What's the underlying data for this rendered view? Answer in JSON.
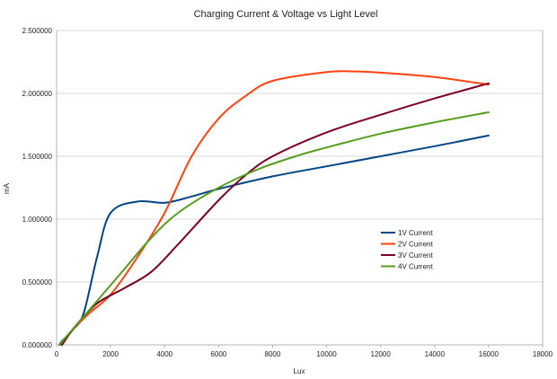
{
  "chart_data": {
    "type": "line",
    "title": "Charging Current & Voltage vs Light Level",
    "xlabel": "Lux",
    "ylabel": "mA",
    "xlim": [
      0,
      18000
    ],
    "ylim": [
      0,
      2.5
    ],
    "x_ticks": [
      "0",
      "2000",
      "4000",
      "6000",
      "8000",
      "10000",
      "12000",
      "14000",
      "16000",
      "18000"
    ],
    "y_ticks": [
      "0.000000",
      "0.500000",
      "1.000000",
      "1.500000",
      "2.000000",
      "2.500000"
    ],
    "grid": true,
    "legend_position": "center-right",
    "series": [
      {
        "name": "1V Current",
        "color": "#004586",
        "points": [
          [
            100,
            0.0
          ],
          [
            200,
            0.03
          ],
          [
            600,
            0.12
          ],
          [
            1000,
            0.25
          ],
          [
            1500,
            0.7
          ],
          [
            2000,
            1.05
          ],
          [
            3000,
            1.14
          ],
          [
            4000,
            1.13
          ],
          [
            5000,
            1.18
          ],
          [
            6000,
            1.24
          ],
          [
            8000,
            1.34
          ],
          [
            10000,
            1.42
          ],
          [
            12000,
            1.5
          ],
          [
            14000,
            1.58
          ],
          [
            16000,
            1.665
          ]
        ]
      },
      {
        "name": "2V Current",
        "color": "#ff420e",
        "points": [
          [
            150,
            0.0
          ],
          [
            600,
            0.12
          ],
          [
            1200,
            0.25
          ],
          [
            2000,
            0.4
          ],
          [
            3000,
            0.7
          ],
          [
            4000,
            1.05
          ],
          [
            5000,
            1.5
          ],
          [
            6000,
            1.8
          ],
          [
            7000,
            1.98
          ],
          [
            8000,
            2.1
          ],
          [
            10000,
            2.17
          ],
          [
            11000,
            2.175
          ],
          [
            12000,
            2.165
          ],
          [
            14000,
            2.13
          ],
          [
            16000,
            2.07
          ]
        ]
      },
      {
        "name": "3V Current",
        "color": "#7e0021",
        "points": [
          [
            200,
            0.0
          ],
          [
            700,
            0.15
          ],
          [
            1500,
            0.33
          ],
          [
            2500,
            0.45
          ],
          [
            3500,
            0.58
          ],
          [
            4500,
            0.8
          ],
          [
            6000,
            1.15
          ],
          [
            7000,
            1.35
          ],
          [
            8000,
            1.5
          ],
          [
            10000,
            1.69
          ],
          [
            12000,
            1.83
          ],
          [
            14000,
            1.96
          ],
          [
            16000,
            2.08
          ]
        ]
      },
      {
        "name": "4V Current",
        "color": "#579d1c",
        "points": [
          [
            100,
            0.0
          ],
          [
            700,
            0.15
          ],
          [
            1500,
            0.35
          ],
          [
            2500,
            0.6
          ],
          [
            3500,
            0.85
          ],
          [
            4500,
            1.05
          ],
          [
            6000,
            1.25
          ],
          [
            7500,
            1.4
          ],
          [
            9000,
            1.51
          ],
          [
            10000,
            1.57
          ],
          [
            12000,
            1.68
          ],
          [
            14000,
            1.77
          ],
          [
            16000,
            1.85
          ]
        ]
      }
    ]
  }
}
